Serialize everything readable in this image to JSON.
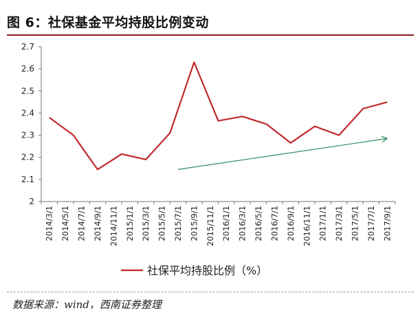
{
  "title": "图 6：社保基金平均持股比例变动",
  "source": "数据来源：wind，西南证券整理",
  "colors": {
    "series": "#c0282d",
    "trend": "#2e8b57",
    "title_rule": "#8b1a1a"
  },
  "chart_data": {
    "type": "line",
    "x": [
      "2014/3/1",
      "2014/5/1",
      "2014/7/1",
      "2014/9/1",
      "2014/11/1",
      "2015/1/1",
      "2015/3/1",
      "2015/5/1",
      "2015/7/1",
      "2015/9/1",
      "2015/11/1",
      "2016/1/1",
      "2016/3/1",
      "2016/5/1",
      "2016/7/1",
      "2016/9/1",
      "2016/11/1",
      "2017/1/1",
      "2017/3/1",
      "2017/5/1",
      "2017/7/1",
      "2017/9/1"
    ],
    "series": [
      {
        "name": "社保平均持股比例（%）",
        "points": [
          {
            "x": "2014/3/1",
            "y": 2.38
          },
          {
            "x": "2014/6/1",
            "y": 2.3
          },
          {
            "x": "2014/9/1",
            "y": 2.145
          },
          {
            "x": "2014/12/1",
            "y": 2.215
          },
          {
            "x": "2015/3/1",
            "y": 2.19
          },
          {
            "x": "2015/6/1",
            "y": 2.31
          },
          {
            "x": "2015/9/1",
            "y": 2.63
          },
          {
            "x": "2015/12/1",
            "y": 2.365
          },
          {
            "x": "2016/3/1",
            "y": 2.385
          },
          {
            "x": "2016/6/1",
            "y": 2.35
          },
          {
            "x": "2016/9/1",
            "y": 2.265
          },
          {
            "x": "2016/12/1",
            "y": 2.34
          },
          {
            "x": "2017/3/1",
            "y": 2.3
          },
          {
            "x": "2017/6/1",
            "y": 2.42
          },
          {
            "x": "2017/9/1",
            "y": 2.45
          }
        ]
      }
    ],
    "trend_arrow": {
      "from": {
        "x": "2015/7/1",
        "y": 2.145
      },
      "to": {
        "x": "2017/9/1",
        "y": 2.285
      }
    },
    "y_ticks": [
      "2",
      "2.1",
      "2.2",
      "2.3",
      "2.4",
      "2.5",
      "2.6",
      "2.7"
    ],
    "ylim": [
      2,
      2.7
    ],
    "grid": false,
    "legend": "bottom-center"
  }
}
